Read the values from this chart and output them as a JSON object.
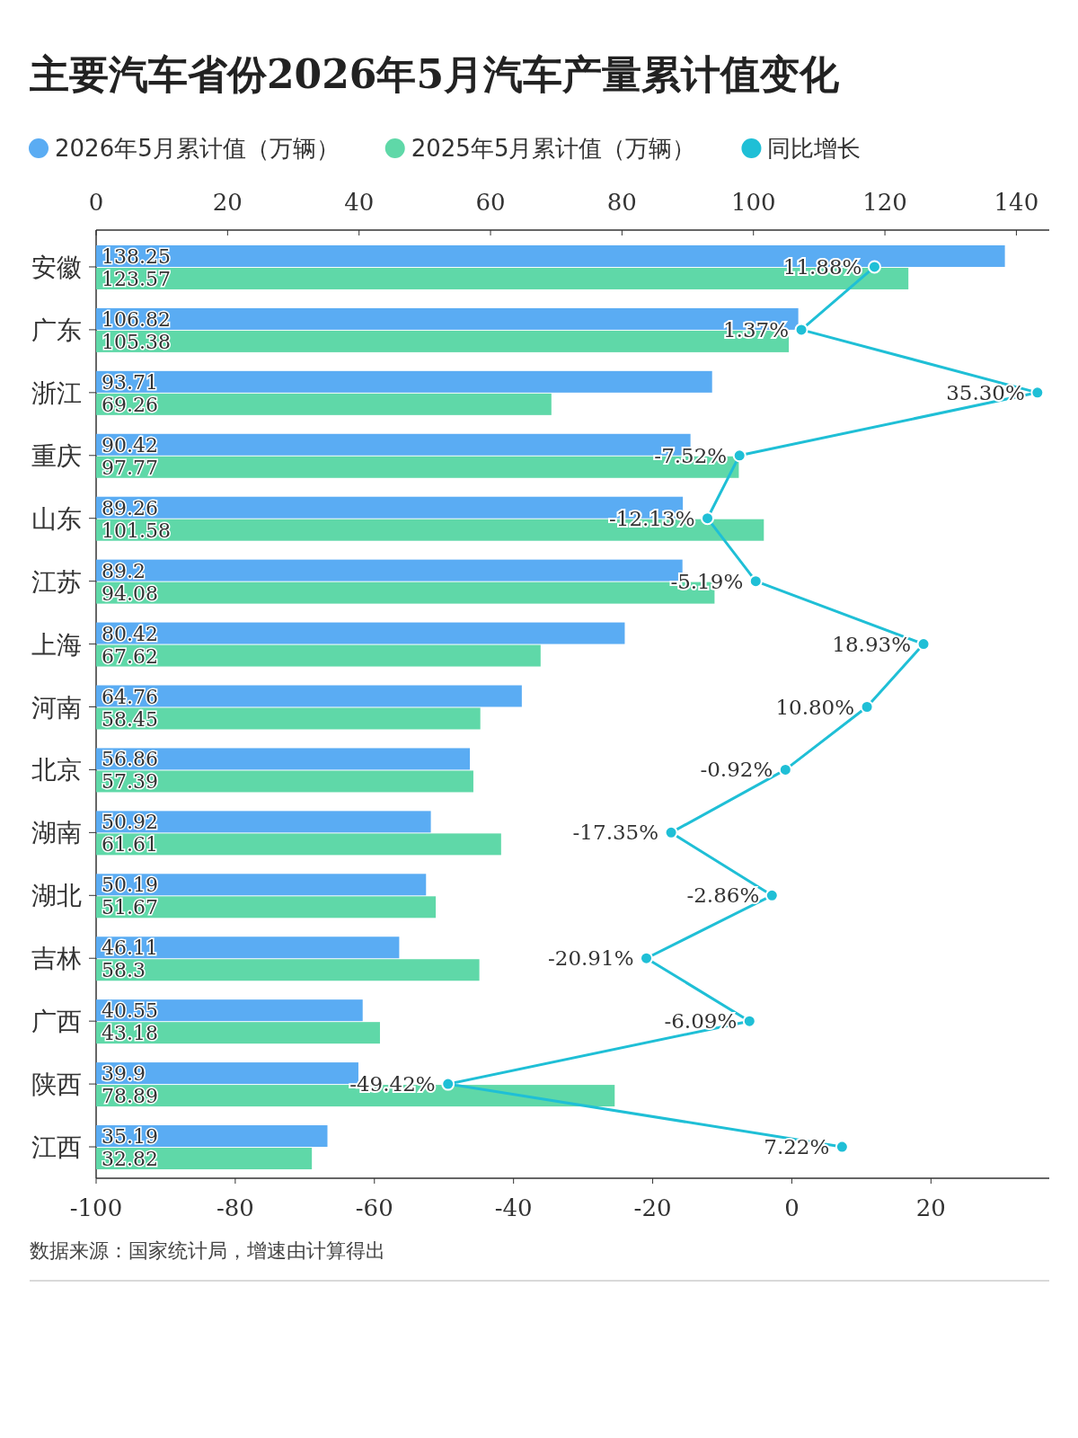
{
  "chart_data": {
    "type": "bar",
    "orientation": "horizontal",
    "title": "主要汽车省份2026年5月汽车产量累计值变化",
    "categories": [
      "安徽",
      "广东",
      "浙江",
      "重庆",
      "山东",
      "江苏",
      "上海",
      "河南",
      "北京",
      "湖南",
      "湖北",
      "吉林",
      "广西",
      "陕西",
      "江西"
    ],
    "series": [
      {
        "name": "2026年5月累计值（万辆）",
        "color": "#5aacf3",
        "values": [
          138.25,
          106.82,
          93.71,
          90.42,
          89.26,
          89.2,
          80.42,
          64.76,
          56.86,
          50.92,
          50.19,
          46.11,
          40.55,
          39.9,
          35.19
        ]
      },
      {
        "name": "2025年5月累计值（万辆）",
        "color": "#5fd8a8",
        "values": [
          123.57,
          105.38,
          69.26,
          97.77,
          101.58,
          94.08,
          67.62,
          58.45,
          57.39,
          61.61,
          51.67,
          58.3,
          43.18,
          78.89,
          32.82
        ]
      },
      {
        "name": "同比增长",
        "color": "#1fbfd6",
        "type": "line",
        "axis": "x2",
        "marker": "circle",
        "values": [
          11.88,
          1.37,
          35.3,
          -7.52,
          -12.13,
          -5.19,
          18.93,
          10.8,
          -0.92,
          -17.35,
          -2.86,
          -20.91,
          -6.09,
          -49.42,
          7.22
        ],
        "value_labels": [
          "11.88%",
          "1.37%",
          "35.30%",
          "-7.52%",
          "-12.13%",
          "-5.19%",
          "18.93%",
          "10.80%",
          "-0.92%",
          "-17.35%",
          "-2.86%",
          "-20.91%",
          "-6.09%",
          "-49.42%",
          "7.22%"
        ]
      }
    ],
    "data_labels": true,
    "xlim": [
      0,
      145
    ],
    "xticks": [
      0,
      20,
      40,
      60,
      80,
      100,
      120,
      140
    ],
    "x2lim": [
      -100,
      37
    ],
    "x2ticks": [
      -100,
      -80,
      -60,
      -40,
      -20,
      0,
      20
    ],
    "legend": "top left",
    "annotations": [
      "数据来源：国家统计局，增速由计算得出"
    ]
  }
}
